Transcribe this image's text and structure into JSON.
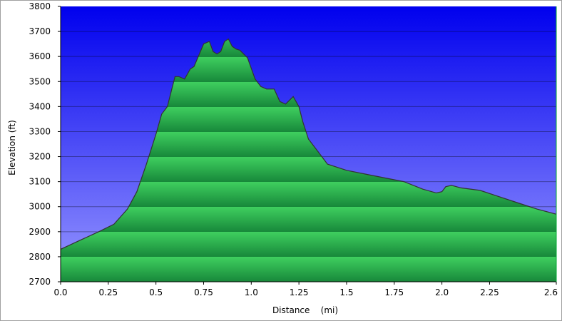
{
  "chart_data": {
    "type": "area",
    "title": "",
    "xlabel": "Distance    (mi)",
    "ylabel": "Elevation (ft)",
    "xlim": [
      0,
      2.6
    ],
    "ylim": [
      2700,
      3800
    ],
    "x_ticks": [
      "0.0",
      "0.25",
      "0.5",
      "0.75",
      "1.0",
      "1.25",
      "1.5",
      "1.75",
      "2.0",
      "2.25",
      "2.6"
    ],
    "y_ticks": [
      "2700",
      "2800",
      "2900",
      "3000",
      "3100",
      "3200",
      "3300",
      "3400",
      "3500",
      "3600",
      "3700",
      "3800"
    ],
    "grid": true,
    "legend": "none",
    "background_gradient": [
      "#0000ee",
      "#9898ff"
    ],
    "fill_colors": [
      "#3fcf5f",
      "#17883a"
    ],
    "line_color": "#333333",
    "series": [
      {
        "x": [
          0.0,
          0.1,
          0.2,
          0.28,
          0.35,
          0.4,
          0.45,
          0.5,
          0.53,
          0.56,
          0.58,
          0.6,
          0.62,
          0.65,
          0.68,
          0.7,
          0.75,
          0.78,
          0.8,
          0.82,
          0.84,
          0.86,
          0.88,
          0.9,
          0.92,
          0.94,
          0.98,
          1.02,
          1.05,
          1.08,
          1.12,
          1.15,
          1.18,
          1.22,
          1.25,
          1.27,
          1.3,
          1.35,
          1.4,
          1.5,
          1.6,
          1.7,
          1.8,
          1.9,
          1.97,
          2.0,
          2.02,
          2.05,
          2.1,
          2.2,
          2.3,
          2.4,
          2.5,
          2.6
        ],
        "y": [
          2830,
          2865,
          2900,
          2930,
          2990,
          3060,
          3170,
          3290,
          3370,
          3400,
          3460,
          3520,
          3520,
          3510,
          3550,
          3560,
          3650,
          3660,
          3620,
          3610,
          3620,
          3660,
          3670,
          3640,
          3630,
          3625,
          3595,
          3510,
          3480,
          3470,
          3470,
          3420,
          3410,
          3440,
          3400,
          3340,
          3270,
          3220,
          3170,
          3145,
          3130,
          3115,
          3100,
          3070,
          3055,
          3060,
          3080,
          3085,
          3075,
          3065,
          3040,
          3015,
          2990,
          2970
        ]
      }
    ]
  }
}
